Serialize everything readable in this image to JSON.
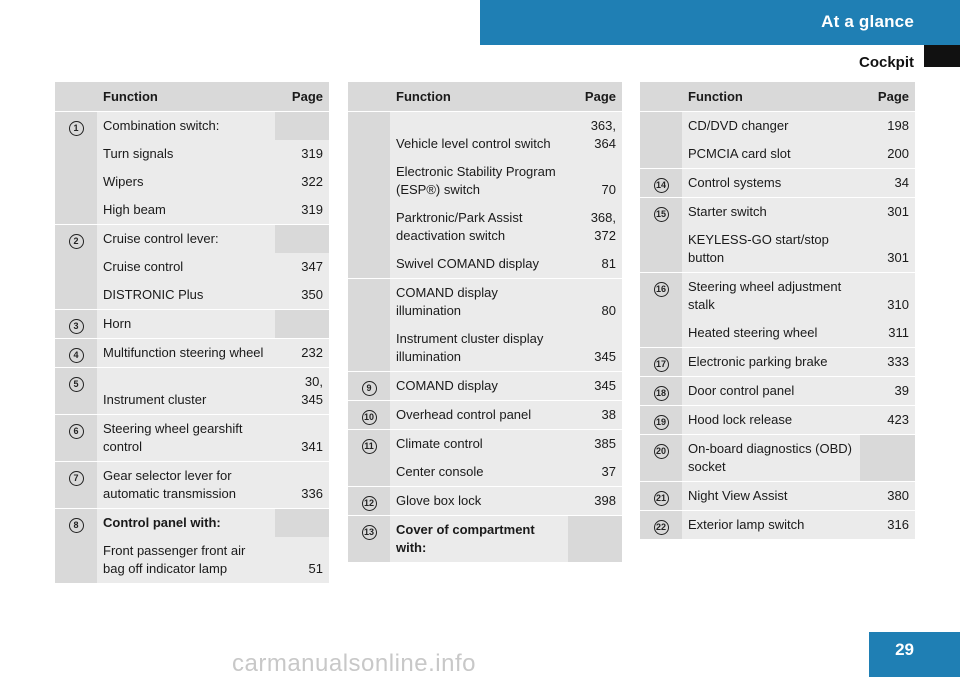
{
  "header": {
    "section": "At a glance",
    "subsection": "Cockpit"
  },
  "columns": {
    "function": "Function",
    "page": "Page"
  },
  "tables": [
    {
      "groups": [
        {
          "num": "1",
          "rows": [
            {
              "label": "Combination switch:",
              "page": ""
            },
            {
              "label": "Turn signals",
              "page": "319"
            },
            {
              "label": "Wipers",
              "page": "322"
            },
            {
              "label": "High beam",
              "page": "319"
            }
          ]
        },
        {
          "num": "2",
          "rows": [
            {
              "label": "Cruise control lever:",
              "page": ""
            },
            {
              "label": "Cruise control",
              "page": "347"
            },
            {
              "label": "DISTRONIC Plus",
              "page": "350"
            }
          ]
        },
        {
          "num": "3",
          "rows": [
            {
              "label": "Horn",
              "page": ""
            }
          ]
        },
        {
          "num": "4",
          "rows": [
            {
              "label": "Multifunction steering wheel",
              "page": "232"
            }
          ]
        },
        {
          "num": "5",
          "rows": [
            {
              "label": "Instrument cluster",
              "page": "30, 345"
            }
          ]
        },
        {
          "num": "6",
          "rows": [
            {
              "label": "Steering wheel gearshift control",
              "page": "341"
            }
          ]
        },
        {
          "num": "7",
          "rows": [
            {
              "label": "Gear selector lever for automatic transmission",
              "page": "336"
            }
          ]
        },
        {
          "num": "8",
          "rows": [
            {
              "label": "Control panel with:",
              "page": "",
              "bold": true
            },
            {
              "label": "Front passenger front air bag off indicator lamp",
              "page": "51"
            }
          ]
        }
      ]
    },
    {
      "groups": [
        {
          "num": "",
          "rows": [
            {
              "label": "Vehicle level control switch",
              "page": "363, 364"
            },
            {
              "label": "Electronic Stability Program (ESP®) switch",
              "page": "70"
            },
            {
              "label": "Parktronic/Park Assist deactivation switch",
              "page": "368, 372"
            },
            {
              "label": "Swivel COMAND display",
              "page": "81"
            }
          ]
        },
        {
          "num": "",
          "rows": [
            {
              "label": "COMAND display illumination",
              "page": "80"
            },
            {
              "label": "Instrument cluster display illumination",
              "page": "345"
            }
          ]
        },
        {
          "num": "9",
          "rows": [
            {
              "label": "COMAND display",
              "page": "345"
            }
          ]
        },
        {
          "num": "10",
          "rows": [
            {
              "label": "Overhead control panel",
              "page": "38"
            }
          ]
        },
        {
          "num": "11",
          "rows": [
            {
              "label": "Climate control",
              "page": "385"
            },
            {
              "label": "Center console",
              "page": "37"
            }
          ]
        },
        {
          "num": "12",
          "rows": [
            {
              "label": "Glove box lock",
              "page": "398"
            }
          ]
        },
        {
          "num": "13",
          "rows": [
            {
              "label": "Cover of compartment with:",
              "page": "",
              "bold": true
            }
          ]
        }
      ]
    },
    {
      "groups": [
        {
          "num": "",
          "rows": [
            {
              "label": "CD/DVD changer",
              "page": "198"
            },
            {
              "label": "PCMCIA card slot",
              "page": "200"
            }
          ]
        },
        {
          "num": "14",
          "rows": [
            {
              "label": "Control systems",
              "page": "34"
            }
          ]
        },
        {
          "num": "15",
          "rows": [
            {
              "label": "Starter switch",
              "page": "301"
            },
            {
              "label": "KEYLESS-GO start/stop button",
              "page": "301"
            }
          ]
        },
        {
          "num": "16",
          "rows": [
            {
              "label": "Steering wheel adjustment stalk",
              "page": "310"
            },
            {
              "label": "Heated steering wheel",
              "page": "311"
            }
          ]
        },
        {
          "num": "17",
          "rows": [
            {
              "label": "Electronic parking brake",
              "page": "333"
            }
          ]
        },
        {
          "num": "18",
          "rows": [
            {
              "label": "Door control panel",
              "page": "39"
            }
          ]
        },
        {
          "num": "19",
          "rows": [
            {
              "label": "Hood lock release",
              "page": "423"
            }
          ]
        },
        {
          "num": "20",
          "rows": [
            {
              "label": "On-board diagnostics (OBD) socket",
              "page": ""
            }
          ]
        },
        {
          "num": "21",
          "rows": [
            {
              "label": "Night View Assist",
              "page": "380"
            }
          ]
        },
        {
          "num": "22",
          "rows": [
            {
              "label": "Exterior lamp switch",
              "page": "316"
            }
          ]
        }
      ]
    }
  ],
  "footer": {
    "page_number": "29",
    "watermark": "carmanualsonline.info"
  },
  "colors": {
    "accent": "#1f7fb4",
    "header_cell": "#d9d9d9",
    "body_cell": "#ebebeb"
  }
}
